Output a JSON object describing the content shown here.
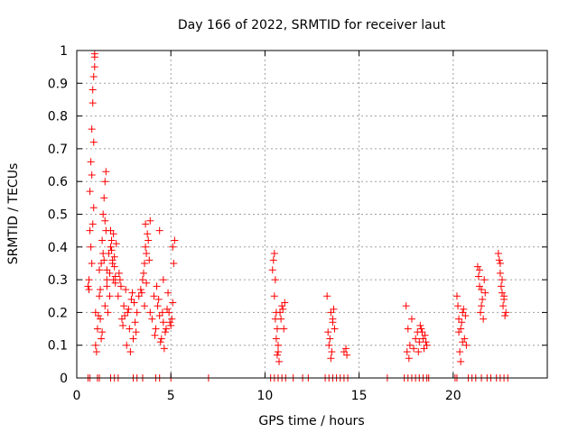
{
  "chart_data": {
    "type": "scatter",
    "title": "Day 166 of 2022, SRMTID for receiver laut",
    "xlabel": "GPS time / hours",
    "ylabel": "SRMTID / TECUs",
    "xlim": [
      0,
      25
    ],
    "ylim": [
      0,
      1
    ],
    "xticks": [
      0,
      5,
      10,
      15,
      20
    ],
    "yticks": [
      0,
      0.1,
      0.2,
      0.3,
      0.4,
      0.5,
      0.6,
      0.7,
      0.8,
      0.9,
      1
    ],
    "ytick_labels": [
      "0",
      "0.1",
      "0.2",
      "0.3",
      "0.4",
      "0.5",
      "0.6",
      "0.7",
      "0.8",
      "0.9",
      "1"
    ],
    "grid": true,
    "marker": "+",
    "color": "#ff0000",
    "series": [
      {
        "name": "SRMTID",
        "x": [
          0.6,
          0.65,
          0.7,
          0.75,
          0.8,
          0.85,
          0.9,
          0.95,
          0.7,
          0.8,
          0.9,
          0.75,
          0.85,
          0.65,
          0.95,
          1.0,
          1.05,
          1.1,
          1.15,
          0.8,
          0.9,
          0.95,
          1.0,
          0.85,
          1.2,
          1.25,
          1.3,
          1.35,
          1.4,
          1.45,
          1.5,
          1.55,
          1.6,
          1.65,
          1.3,
          1.4,
          1.5,
          1.6,
          1.2,
          1.35,
          1.45,
          1.55,
          1.25,
          1.5,
          1.6,
          1.7,
          1.75,
          1.8,
          1.85,
          1.9,
          1.95,
          2.0,
          2.05,
          2.1,
          1.8,
          1.9,
          2.0,
          1.75,
          1.85,
          1.95,
          2.05,
          2.2,
          2.3,
          2.4,
          2.5,
          2.6,
          2.7,
          2.8,
          2.9,
          3.0,
          3.1,
          2.35,
          2.55,
          2.75,
          2.95,
          2.25,
          2.45,
          2.65,
          2.85,
          3.05,
          3.15,
          3.2,
          3.3,
          3.4,
          3.5,
          3.6,
          3.7,
          3.8,
          3.9,
          3.55,
          3.65,
          3.75,
          3.45,
          3.85,
          3.65,
          3.7,
          3.6,
          3.9,
          4.0,
          4.1,
          4.2,
          4.3,
          4.4,
          4.5,
          4.6,
          4.7,
          4.8,
          4.9,
          5.0,
          5.1,
          4.25,
          4.45,
          4.65,
          4.85,
          5.05,
          4.15,
          4.35,
          4.55,
          4.75,
          4.95,
          5.15,
          4.4,
          4.6,
          5.1,
          5.2,
          10.4,
          10.5,
          10.55,
          10.6,
          10.65,
          10.7,
          10.75,
          10.5,
          10.6,
          10.7,
          10.45,
          10.55,
          10.65,
          10.8,
          10.9,
          11.0,
          11.05,
          10.85,
          10.95,
          13.3,
          13.4,
          13.5,
          13.6,
          13.7,
          13.45,
          13.55,
          13.65,
          13.35,
          13.5,
          13.6,
          14.2,
          14.3,
          14.35,
          17.5,
          17.6,
          17.7,
          17.55,
          17.65,
          17.8,
          17.9,
          18.0,
          18.1,
          18.2,
          18.3,
          18.4,
          18.5,
          18.6,
          18.15,
          18.25,
          18.35,
          18.45,
          18.55,
          20.2,
          20.3,
          20.4,
          20.5,
          20.6,
          20.7,
          20.25,
          20.35,
          20.45,
          20.55,
          20.65,
          20.3,
          20.5,
          20.4,
          21.3,
          21.4,
          21.5,
          21.6,
          21.7,
          21.35,
          21.45,
          21.55,
          21.65,
          21.4,
          21.5,
          22.4,
          22.5,
          22.6,
          22.7,
          22.8,
          22.45,
          22.55,
          22.65,
          22.75,
          22.5,
          22.6,
          22.7,
          0.6,
          0.7,
          1.1,
          1.2,
          1.8,
          2.0,
          2.2,
          3.0,
          3.2,
          3.5,
          4.2,
          4.4,
          5.0,
          7.0,
          10.3,
          10.5,
          10.7,
          10.9,
          11.1,
          11.5,
          12.0,
          12.3,
          13.2,
          13.4,
          13.6,
          13.8,
          14.0,
          14.2,
          14.4,
          16.5,
          17.4,
          17.6,
          17.8,
          18.0,
          18.2,
          18.4,
          18.6,
          18.7,
          20.1,
          20.2,
          20.8,
          21.0,
          21.2,
          21.5,
          21.8,
          22.0,
          22.3,
          22.5,
          22.7,
          22.9
        ],
        "y": [
          0.28,
          0.3,
          0.57,
          0.66,
          0.76,
          0.84,
          0.92,
          0.98,
          0.45,
          0.62,
          0.72,
          0.4,
          0.88,
          0.27,
          0.99,
          0.2,
          0.08,
          0.15,
          0.19,
          0.35,
          0.52,
          0.95,
          0.1,
          0.47,
          0.33,
          0.27,
          0.35,
          0.42,
          0.5,
          0.55,
          0.6,
          0.63,
          0.3,
          0.2,
          0.12,
          0.38,
          0.48,
          0.28,
          0.25,
          0.14,
          0.36,
          0.45,
          0.18,
          0.22,
          0.33,
          0.38,
          0.32,
          0.4,
          0.42,
          0.35,
          0.3,
          0.37,
          0.29,
          0.41,
          0.45,
          0.36,
          0.34,
          0.25,
          0.39,
          0.44,
          0.31,
          0.25,
          0.3,
          0.18,
          0.22,
          0.27,
          0.2,
          0.15,
          0.24,
          0.12,
          0.17,
          0.28,
          0.19,
          0.21,
          0.26,
          0.32,
          0.16,
          0.1,
          0.08,
          0.23,
          0.14,
          0.2,
          0.25,
          0.27,
          0.3,
          0.35,
          0.38,
          0.42,
          0.48,
          0.32,
          0.4,
          0.44,
          0.26,
          0.36,
          0.47,
          0.29,
          0.22,
          0.2,
          0.18,
          0.25,
          0.15,
          0.22,
          0.19,
          0.12,
          0.17,
          0.14,
          0.21,
          0.2,
          0.16,
          0.23,
          0.28,
          0.11,
          0.09,
          0.26,
          0.18,
          0.13,
          0.24,
          0.2,
          0.15,
          0.17,
          0.35,
          0.45,
          0.3,
          0.4,
          0.42,
          0.33,
          0.38,
          0.3,
          0.2,
          0.15,
          0.1,
          0.05,
          0.25,
          0.12,
          0.08,
          0.36,
          0.18,
          0.07,
          0.2,
          0.22,
          0.15,
          0.23,
          0.18,
          0.21,
          0.25,
          0.1,
          0.2,
          0.18,
          0.15,
          0.12,
          0.08,
          0.21,
          0.14,
          0.06,
          0.17,
          0.08,
          0.09,
          0.07,
          0.22,
          0.15,
          0.1,
          0.08,
          0.06,
          0.18,
          0.09,
          0.12,
          0.14,
          0.11,
          0.15,
          0.12,
          0.13,
          0.1,
          0.08,
          0.16,
          0.14,
          0.09,
          0.11,
          0.25,
          0.18,
          0.15,
          0.2,
          0.12,
          0.1,
          0.22,
          0.08,
          0.17,
          0.21,
          0.19,
          0.14,
          0.11,
          0.05,
          0.34,
          0.28,
          0.22,
          0.18,
          0.26,
          0.31,
          0.2,
          0.24,
          0.3,
          0.33,
          0.27,
          0.38,
          0.35,
          0.3,
          0.25,
          0.2,
          0.36,
          0.28,
          0.22,
          0.19,
          0.32,
          0.26,
          0.24,
          0,
          0,
          0,
          0,
          0,
          0,
          0,
          0,
          0,
          0,
          0,
          0,
          0,
          0,
          0,
          0,
          0,
          0,
          0,
          0,
          0,
          0,
          0,
          0,
          0,
          0,
          0,
          0,
          0,
          0,
          0,
          0,
          0,
          0,
          0,
          0,
          0,
          0,
          0,
          0,
          0,
          0,
          0,
          0,
          0,
          0,
          0,
          0,
          0,
          0
        ]
      }
    ]
  }
}
